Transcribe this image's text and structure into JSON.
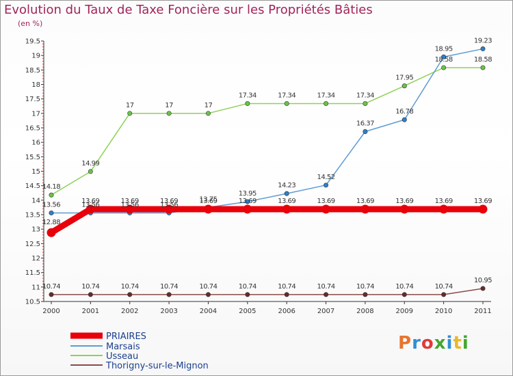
{
  "title": "Evolution du Taux de Taxe Foncière sur les Propriétés Bâties",
  "subtitle": "(en %)",
  "logo": {
    "text": "Proxiti",
    "colors": [
      "#e8742e",
      "#2f8fd3",
      "#e03a3a",
      "#43a72f",
      "#2f8fd3",
      "#e8b82e",
      "#43a72f"
    ]
  },
  "chart_data": {
    "type": "line",
    "title": "Evolution du Taux de Taxe Foncière sur les Propriétés Bâties",
    "ylabel": "(en %)",
    "ylim": [
      10.5,
      19.5
    ],
    "yticks": [
      "10.5",
      "11",
      "11.5",
      "12",
      "12.5",
      "13",
      "13.5",
      "14",
      "14.5",
      "15",
      "15.5",
      "16",
      "16.5",
      "17",
      "17.5",
      "18",
      "18.5",
      "19",
      "19.5"
    ],
    "categories": [
      "2000",
      "2001",
      "2002",
      "2003",
      "2004",
      "2005",
      "2006",
      "2007",
      "2008",
      "2009",
      "2010",
      "2011"
    ],
    "series": [
      {
        "name": "PRIAIRES",
        "color": "#e8000b",
        "thick": true,
        "values": [
          12.88,
          13.69,
          13.69,
          13.69,
          13.69,
          13.69,
          13.69,
          13.69,
          13.69,
          13.69,
          13.69,
          13.69
        ],
        "labels": [
          "12.88",
          "13.69",
          "13.69",
          "13.69",
          "13.69",
          "13.69",
          "13.69",
          "13.69",
          "13.69",
          "13.69",
          "13.69",
          "13.69"
        ]
      },
      {
        "name": "Marsais",
        "color": "#5b9bd5",
        "marker": "#2f7fc8",
        "values": [
          13.56,
          13.56,
          13.56,
          13.56,
          13.75,
          13.95,
          14.23,
          14.52,
          16.37,
          16.78,
          18.95,
          19.23
        ],
        "labels": [
          "13.56",
          "13.56",
          "13.56",
          "13.56",
          "13.75",
          "13.95",
          "14.23",
          "14.52",
          "16.37",
          "16.78",
          "18.95",
          "19.23"
        ]
      },
      {
        "name": "Usseau",
        "color": "#8ed158",
        "marker": "#6cc24a",
        "values": [
          14.18,
          14.99,
          17,
          17,
          17,
          17.34,
          17.34,
          17.34,
          17.34,
          17.95,
          18.58,
          18.58
        ],
        "labels": [
          "14.18",
          "14.99",
          "17",
          "17",
          "17",
          "17.34",
          "17.34",
          "17.34",
          "17.34",
          "17.95",
          "18.58",
          "18.58"
        ]
      },
      {
        "name": "Thorigny-sur-le-Mignon",
        "color": "#8b4a4a",
        "marker": "#6b2a2a",
        "values": [
          10.74,
          10.74,
          10.74,
          10.74,
          10.74,
          10.74,
          10.74,
          10.74,
          10.74,
          10.74,
          10.74,
          10.95
        ],
        "labels": [
          "10.74",
          "10.74",
          "10.74",
          "10.74",
          "10.74",
          "10.74",
          "10.74",
          "10.74",
          "10.74",
          "10.74",
          "10.74",
          "10.95"
        ]
      }
    ],
    "legend": "bottom-left"
  }
}
